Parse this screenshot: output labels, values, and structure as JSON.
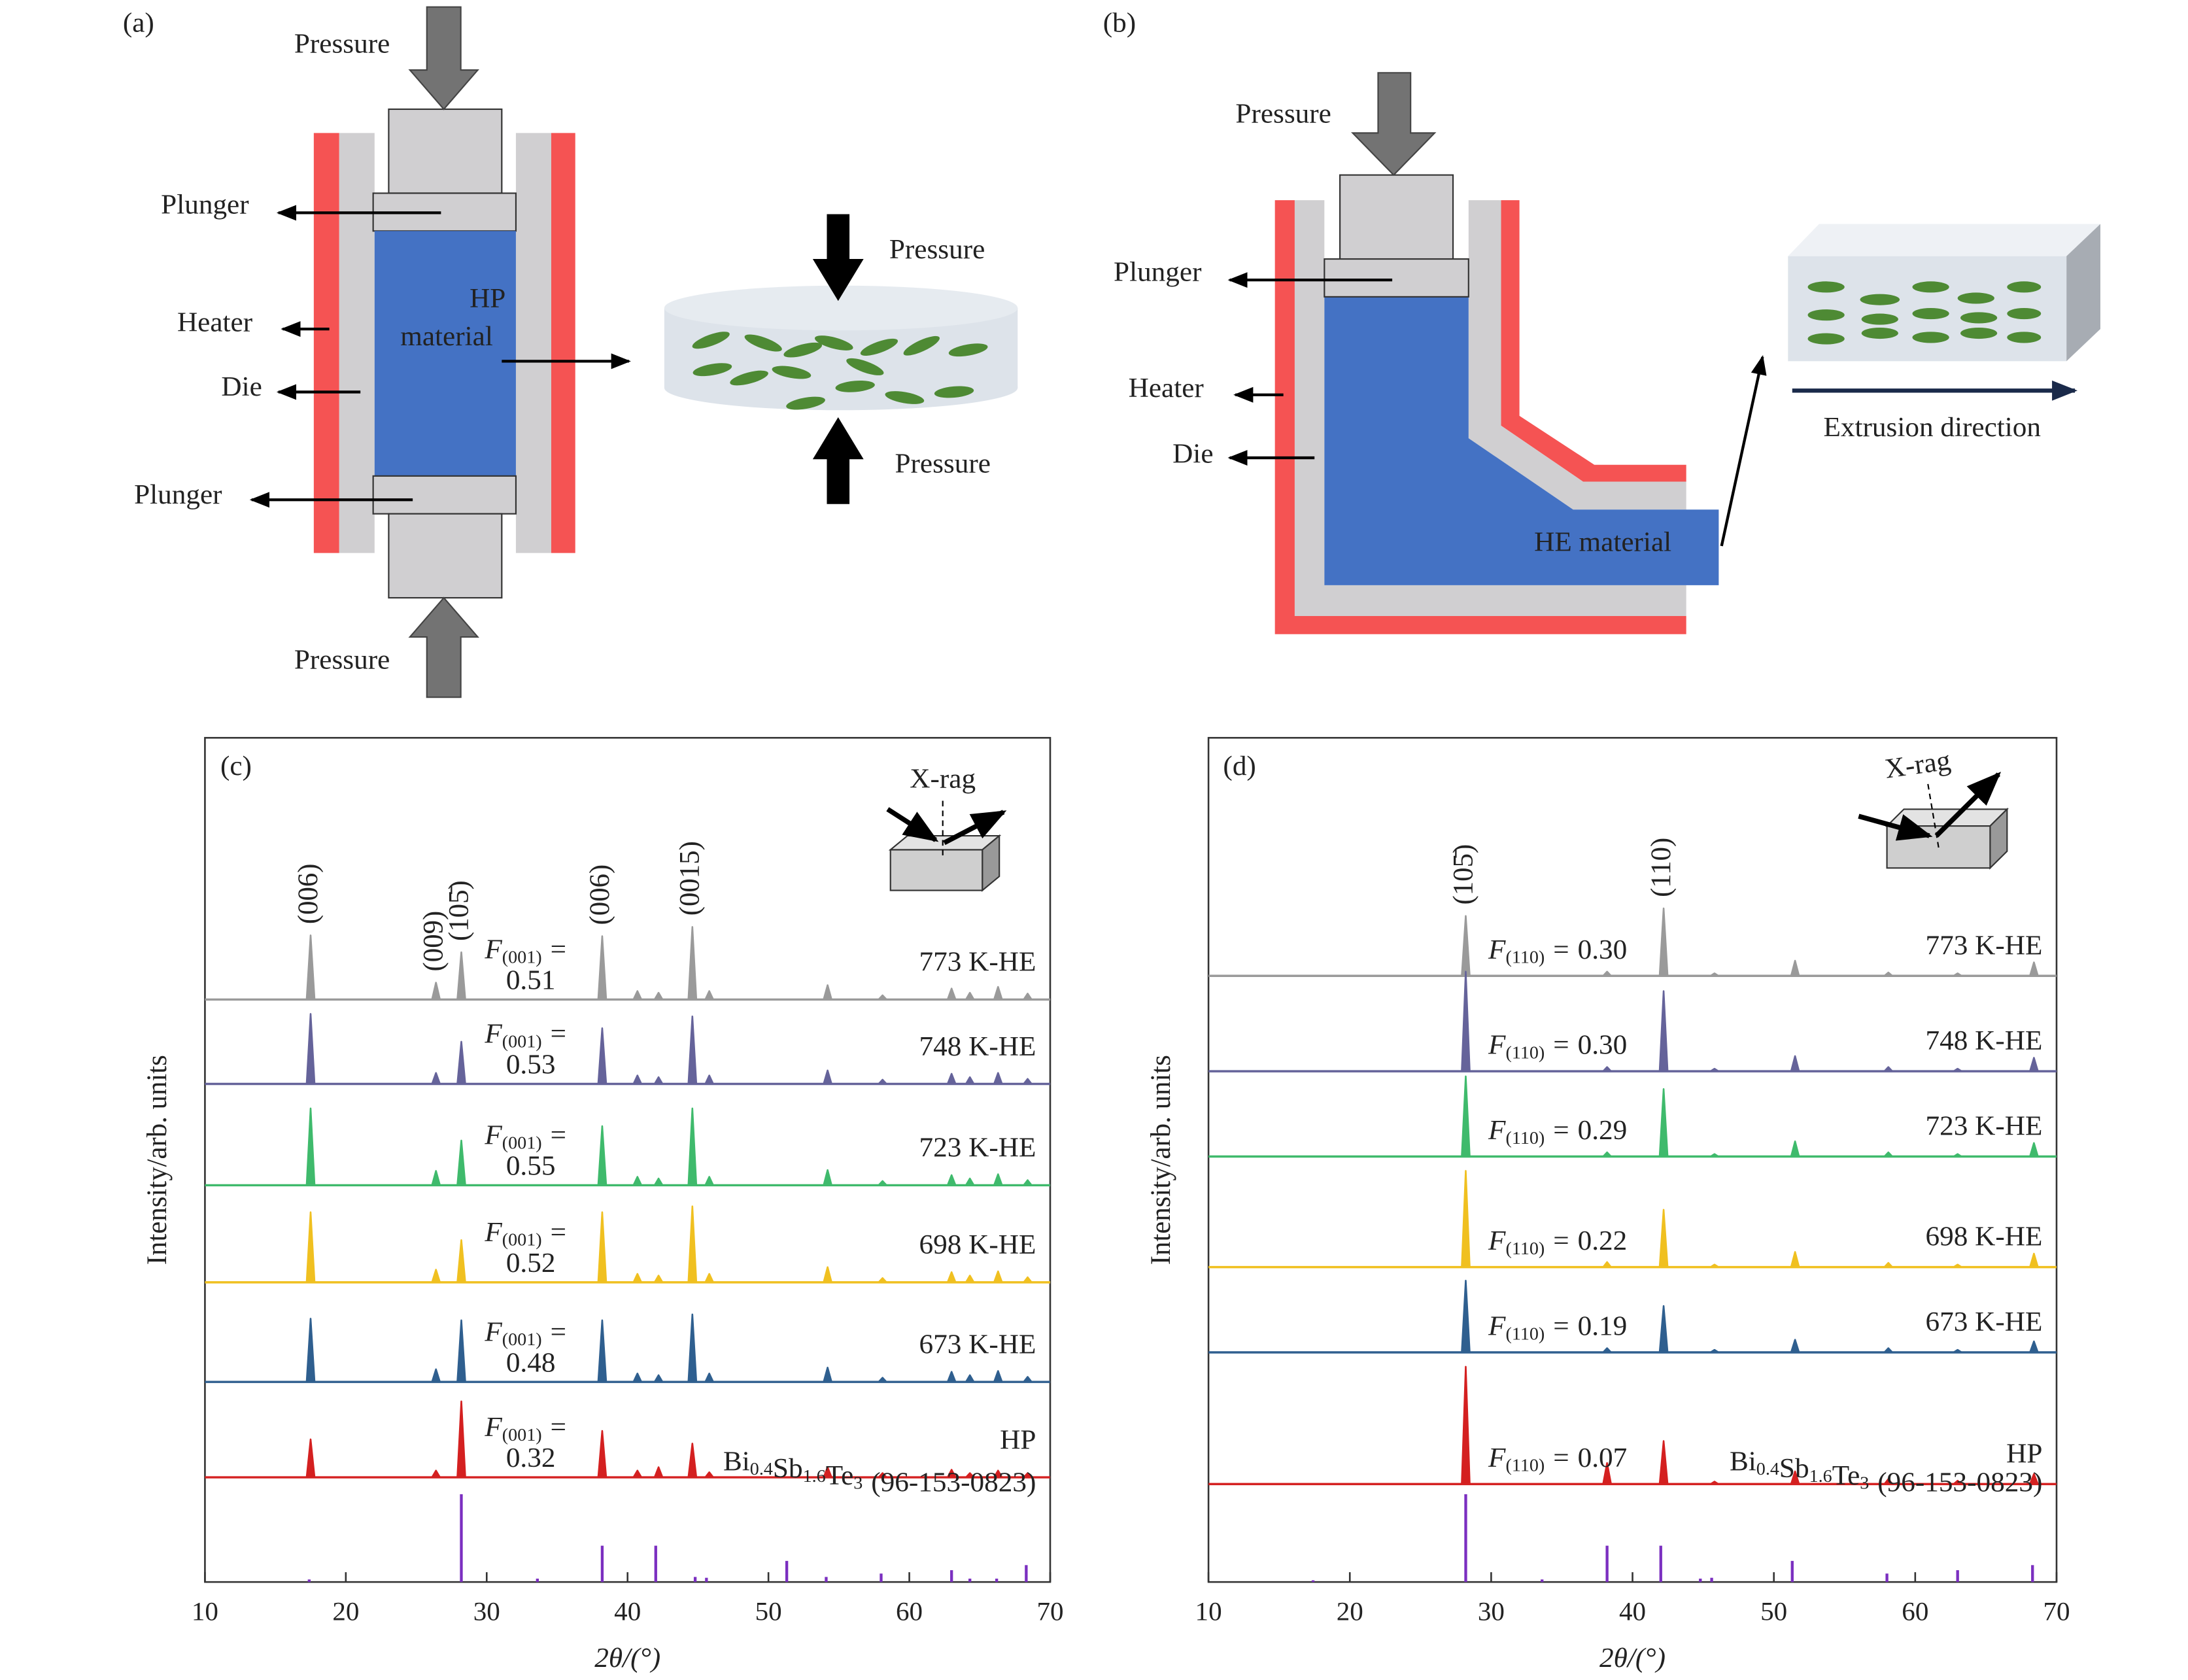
{
  "panel_a": {
    "label": "(a)",
    "pressure_top": "Pressure",
    "pressure_bottom": "Pressure",
    "plunger_top": "Plunger",
    "heater": "Heater",
    "die": "Die",
    "plunger_bottom": "Plunger",
    "material": [
      "HP",
      "material"
    ],
    "sample_pressure_top": "Pressure",
    "sample_pressure_bottom": "Pressure"
  },
  "panel_b": {
    "label": "(b)",
    "pressure": "Pressure",
    "plunger": "Plunger",
    "heater": "Heater",
    "die": "Die",
    "material": "HE material",
    "direction": "Extrusion direction"
  },
  "chart_data": [
    {
      "type": "xrd",
      "panel_label": "(c)",
      "inset_label": "X-rag",
      "x_label": "2θ/(°)",
      "y_label": "Intensity/arb. units",
      "xlim": [
        10,
        70
      ],
      "xticks": [
        10,
        20,
        30,
        40,
        50,
        60,
        70
      ],
      "ylim": [
        0,
        100
      ],
      "factor_symbol": "F",
      "factor_subscript": "(001)",
      "factor_relation": "=",
      "peak_labels": [
        {
          "text": "(006)",
          "x": 17.5
        },
        {
          "text": "(009)",
          "x": 26.4
        },
        {
          "text": "(105̄)",
          "x": 28.2
        },
        {
          "text": "(006)",
          "x": 38.2
        },
        {
          "text": "(0015)",
          "x": 44.6
        }
      ],
      "series": [
        {
          "name": "773 K-HE",
          "color": "#9a9a9a",
          "factor": "0.51",
          "baseline": 69.0,
          "x": [
            17.5,
            26.4,
            28.2,
            38.2,
            40.7,
            42.2,
            44.6,
            45.8,
            54.2,
            58.1,
            63.0,
            64.3,
            66.3,
            68.4
          ],
          "values": [
            76.6,
            71.0,
            74.6,
            76.5,
            70.0,
            69.8,
            77.6,
            70.0,
            70.7,
            69.5,
            70.3,
            69.8,
            70.5,
            69.7
          ]
        },
        {
          "name": "748 K-HE",
          "color": "#65639a",
          "factor": "0.53",
          "baseline": 59.0,
          "x": [
            17.5,
            26.4,
            28.2,
            38.2,
            40.7,
            42.2,
            44.6,
            45.8,
            54.2,
            58.1,
            63.0,
            64.3,
            66.3,
            68.4
          ],
          "values": [
            67.3,
            60.3,
            64.0,
            65.6,
            60.0,
            59.8,
            67.0,
            60.0,
            60.6,
            59.5,
            60.2,
            59.8,
            60.3,
            59.6
          ]
        },
        {
          "name": "723 K-HE",
          "color": "#3fba6c",
          "factor": "0.55",
          "baseline": 47.0,
          "x": [
            17.5,
            26.4,
            28.2,
            38.2,
            40.7,
            42.2,
            44.6,
            45.8,
            54.2,
            58.1,
            63.0,
            64.3,
            66.3,
            68.4
          ],
          "values": [
            56.1,
            48.7,
            52.3,
            54.0,
            48.0,
            47.8,
            56.1,
            48.0,
            48.8,
            47.5,
            48.2,
            47.8,
            48.3,
            47.6
          ]
        },
        {
          "name": "698 K-HE",
          "color": "#f0c020",
          "factor": "0.52",
          "baseline": 35.5,
          "x": [
            17.5,
            26.4,
            28.2,
            38.2,
            40.7,
            42.2,
            44.6,
            45.8,
            54.2,
            58.1,
            63.0,
            64.3,
            66.3,
            68.4
          ],
          "values": [
            43.8,
            37.0,
            40.5,
            43.8,
            36.5,
            36.3,
            44.5,
            36.5,
            37.3,
            36.0,
            36.7,
            36.3,
            36.8,
            36.1
          ]
        },
        {
          "name": "673 K-HE",
          "color": "#2f5f8f",
          "factor": "0.48",
          "baseline": 23.7,
          "x": [
            17.5,
            26.4,
            28.2,
            38.2,
            40.7,
            42.2,
            44.6,
            45.8,
            54.2,
            58.1,
            63.0,
            64.3,
            66.3,
            68.4
          ],
          "values": [
            31.2,
            25.2,
            31.0,
            31.0,
            24.7,
            24.5,
            31.7,
            24.7,
            25.4,
            24.2,
            24.9,
            24.5,
            25.0,
            24.3
          ]
        },
        {
          "name": "HP",
          "color": "#d42020",
          "factor": "0.32",
          "baseline": 12.4,
          "x": [
            17.5,
            26.4,
            28.2,
            38.2,
            40.7,
            42.2,
            44.6,
            45.8,
            54.2,
            58.1,
            63.0,
            64.3,
            66.3,
            68.4
          ],
          "values": [
            16.9,
            13.2,
            21.4,
            17.9,
            13.2,
            13.6,
            16.4,
            13.0,
            13.6,
            12.9,
            13.3,
            12.9,
            13.2,
            12.9
          ]
        }
      ],
      "reference": {
        "formula": [
          [
            "Bi",
            "0.4"
          ],
          [
            "Sb",
            "1.6"
          ],
          [
            "Te",
            "3"
          ]
        ],
        "code": "(96-153-0823)",
        "color": "#7b2fc0",
        "x": [
          17.4,
          28.2,
          33.6,
          38.2,
          42.0,
          44.8,
          45.6,
          51.3,
          54.1,
          58.0,
          63.0,
          64.3,
          66.2,
          68.3
        ],
        "values": [
          0.3,
          10.4,
          0.4,
          4.3,
          4.3,
          0.6,
          0.5,
          2.5,
          0.6,
          1.0,
          1.4,
          0.4,
          0.4,
          2.0
        ]
      }
    },
    {
      "type": "xrd",
      "panel_label": "(d)",
      "inset_label": "X-rag",
      "x_label": "2θ/(°)",
      "y_label": "Intensity/arb. units",
      "xlim": [
        10,
        70
      ],
      "xticks": [
        10,
        20,
        30,
        40,
        50,
        60,
        70
      ],
      "ylim": [
        0,
        100
      ],
      "factor_symbol": "F",
      "factor_subscript": "(110)",
      "factor_relation": "=",
      "peak_labels": [
        {
          "text": "(105̄)",
          "x": 28.2
        },
        {
          "text": "(110)",
          "x": 42.2
        }
      ],
      "series": [
        {
          "name": "773 K-HE",
          "color": "#9a9a9a",
          "factor": "0.30",
          "baseline": 71.8,
          "x": [
            28.2,
            38.2,
            42.2,
            45.8,
            51.5,
            58.1,
            63.0,
            68.4
          ],
          "values": [
            78.9,
            72.3,
            79.8,
            72.1,
            73.6,
            72.2,
            72.1,
            73.4
          ]
        },
        {
          "name": "748 K-HE",
          "color": "#65639a",
          "factor": "0.30",
          "baseline": 60.5,
          "x": [
            28.2,
            38.2,
            42.2,
            45.8,
            51.5,
            58.1,
            63.0,
            68.4
          ],
          "values": [
            72.3,
            61.0,
            70.0,
            60.8,
            62.3,
            61.0,
            60.8,
            62.1
          ]
        },
        {
          "name": "723 K-HE",
          "color": "#3fba6c",
          "factor": "0.29",
          "baseline": 50.4,
          "x": [
            28.2,
            38.2,
            42.2,
            45.8,
            51.5,
            58.1,
            63.0,
            68.4
          ],
          "values": [
            59.9,
            50.9,
            58.4,
            50.7,
            52.2,
            50.9,
            50.7,
            52.0
          ]
        },
        {
          "name": "698 K-HE",
          "color": "#f0c020",
          "factor": "0.22",
          "baseline": 37.3,
          "x": [
            28.2,
            38.2,
            42.2,
            45.8,
            51.5,
            58.1,
            63.0,
            68.4
          ],
          "values": [
            48.7,
            37.9,
            44.1,
            37.6,
            39.1,
            37.8,
            37.6,
            38.9
          ]
        },
        {
          "name": "673 K-HE",
          "color": "#2f5f8f",
          "factor": "0.19",
          "baseline": 27.2,
          "x": [
            28.2,
            38.2,
            42.2,
            45.8,
            51.5,
            58.1,
            63.0,
            68.4
          ],
          "values": [
            35.7,
            27.7,
            32.7,
            27.5,
            28.7,
            27.7,
            27.5,
            28.5
          ]
        },
        {
          "name": "HP",
          "color": "#d42020",
          "factor": "0.07",
          "baseline": 11.6,
          "x": [
            28.2,
            38.2,
            42.2,
            45.8,
            51.5,
            58.1,
            63.0,
            68.4
          ],
          "values": [
            25.5,
            14.1,
            16.7,
            11.9,
            13.1,
            12.2,
            12.0,
            12.8
          ]
        }
      ],
      "reference": {
        "formula": [
          [
            "Bi",
            "0.4"
          ],
          [
            "Sb",
            "1.6"
          ],
          [
            "Te",
            "3"
          ]
        ],
        "code": "(96-153-0823)",
        "color": "#7b2fc0",
        "x": [
          17.4,
          28.2,
          33.6,
          38.2,
          42.0,
          44.8,
          45.6,
          51.3,
          58.0,
          63.0,
          68.3
        ],
        "values": [
          0.2,
          10.4,
          0.3,
          4.3,
          4.3,
          0.4,
          0.5,
          2.5,
          1.0,
          1.4,
          2.0
        ]
      }
    }
  ]
}
